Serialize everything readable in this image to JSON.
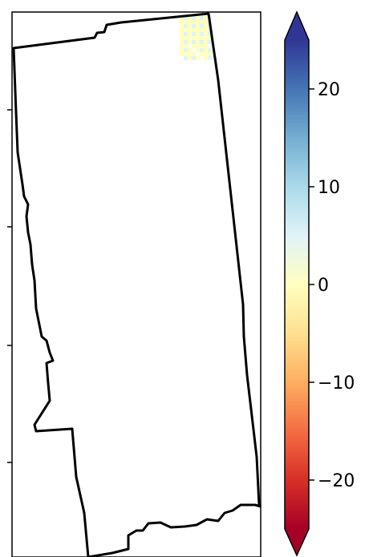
{
  "map": {
    "colormap": "RdYlBu",
    "outline_color": "#000000",
    "data_patch_colors": [
      "#ffffbf",
      "#fee090",
      "#e0f3f8",
      "#f7f7c8"
    ]
  },
  "colorbar": {
    "min": -25,
    "max": 25,
    "extend": "both",
    "gradient": [
      "#a50026",
      "#d73027",
      "#f46d43",
      "#fdae61",
      "#fee090",
      "#ffffbf",
      "#e0f3f8",
      "#abd9e9",
      "#74add1",
      "#4575b4",
      "#313695"
    ],
    "ticks": [
      {
        "value": 20,
        "label": "20"
      },
      {
        "value": 10,
        "label": "10"
      },
      {
        "value": 0,
        "label": "0"
      },
      {
        "value": -10,
        "label": "−10"
      },
      {
        "value": -20,
        "label": "−20"
      }
    ]
  }
}
